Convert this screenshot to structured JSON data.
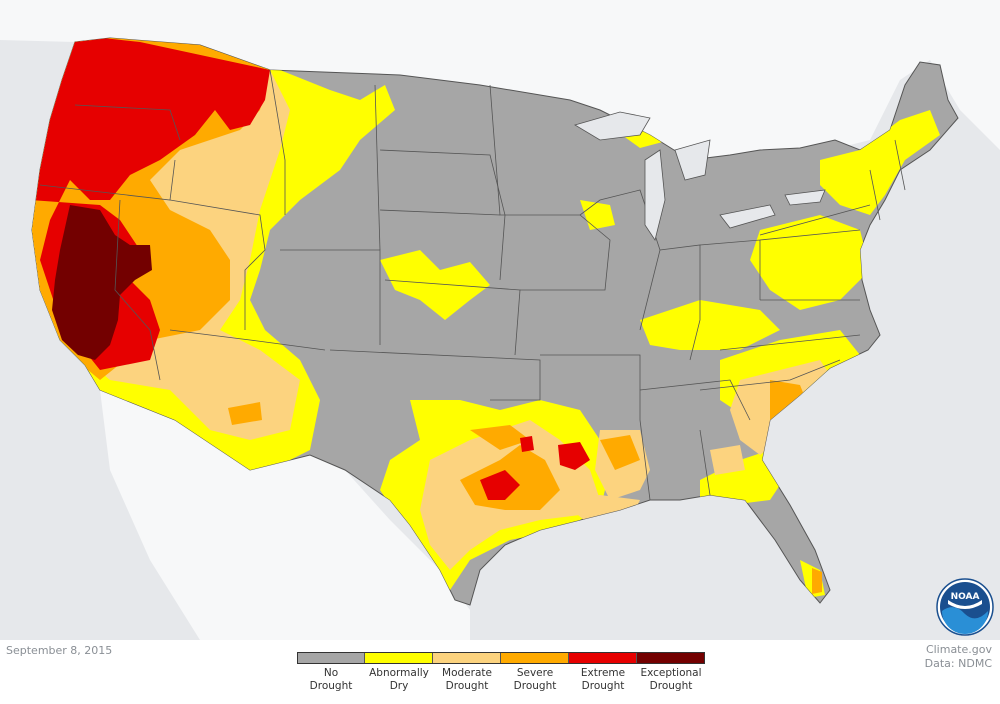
{
  "date": "September 8, 2015",
  "credit": {
    "site": "Climate.gov",
    "data": "Data: NDMC"
  },
  "logo": {
    "text": "NOAA",
    "icon": "noaa-logo-icon"
  },
  "legend": [
    {
      "line1": "No",
      "line2": "Drought",
      "color": "#a6a6a6"
    },
    {
      "line1": "Abnormally",
      "line2": "Dry",
      "color": "#ffff00"
    },
    {
      "line1": "Moderate",
      "line2": "Drought",
      "color": "#fcd37f"
    },
    {
      "line1": "Severe",
      "line2": "Drought",
      "color": "#ffaa00"
    },
    {
      "line1": "Extreme",
      "line2": "Drought",
      "color": "#e60000"
    },
    {
      "line1": "Exceptional",
      "line2": "Drought",
      "color": "#730000"
    }
  ],
  "colors": {
    "land": "#f7f8f9",
    "water": "#e6e8eb",
    "border": "#555555"
  }
}
